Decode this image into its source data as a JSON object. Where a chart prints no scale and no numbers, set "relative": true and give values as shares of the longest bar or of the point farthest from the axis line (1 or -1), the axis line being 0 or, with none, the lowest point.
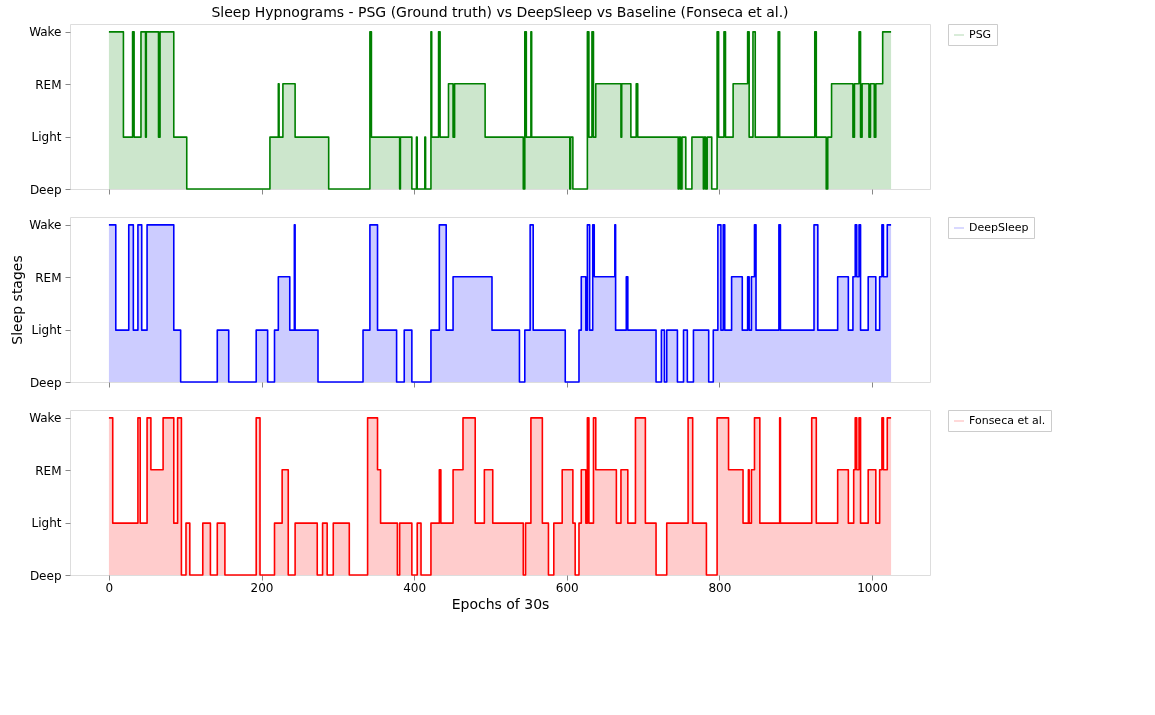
{
  "chart_data": [
    {
      "type": "step",
      "relative": true,
      "title": "Sleep Hypnograms - PSG (Ground truth) vs DeepSleep vs Baseline (Fonseca et al.)",
      "xlim": [
        -51,
        1076
      ],
      "xticks": [
        0,
        200,
        400,
        600,
        800,
        1000
      ],
      "y_categories": [
        "Wake",
        "REM",
        "Light",
        "Deep"
      ],
      "tick_labels": "y",
      "legend": "right",
      "grid": false,
      "series": [
        {
          "name": "PSG",
          "color": "#008000",
          "x": [
            0,
            19,
            31,
            33,
            42,
            48,
            49,
            65,
            67,
            85,
            102,
            211,
            222,
            223,
            228,
            244,
            288,
            342,
            344,
            381,
            382,
            397,
            403,
            404,
            414,
            415,
            422,
            423,
            432,
            434,
            445,
            451,
            453,
            493,
            543,
            545,
            547,
            553,
            554,
            604,
            605,
            608,
            627,
            629,
            633,
            635,
            638,
            671,
            672,
            684,
            691,
            693,
            746,
            747,
            749,
            751,
            756,
            764,
            779,
            780,
            782,
            784,
            790,
            797,
            799,
            806,
            808,
            818,
            837,
            839,
            844,
            847,
            877,
            879,
            925,
            927,
            940,
            942,
            947,
            975,
            977,
            983,
            985,
            987,
            996,
            998,
            1003,
            1005,
            1014,
            1025
          ],
          "values": [
            1,
            0.33,
            1,
            0.33,
            1,
            0.33,
            1,
            0.33,
            1,
            0.33,
            0,
            0.33,
            0.67,
            0.33,
            0.67,
            0.33,
            0,
            1,
            0.33,
            0,
            0.33,
            0,
            0.33,
            0,
            0.33,
            0,
            1,
            0.33,
            1,
            0.33,
            0.67,
            0.33,
            0.67,
            0.33,
            0,
            1,
            0.33,
            1,
            0.33,
            0,
            0.33,
            0,
            1,
            0.33,
            1,
            0.33,
            0.67,
            0.33,
            0.67,
            0.33,
            0.67,
            0.33,
            0,
            0.33,
            0,
            0.33,
            0,
            0.33,
            0,
            0.33,
            0,
            0.33,
            0,
            1,
            0.33,
            1,
            0.33,
            0.67,
            1,
            0.33,
            1,
            0.33,
            1,
            0.33,
            1,
            0.33,
            0,
            0.33,
            0.67,
            0.33,
            0.67,
            1,
            0.33,
            0.67,
            0.33,
            0.67,
            0.33,
            0.67,
            1,
            1
          ]
        }
      ]
    },
    {
      "type": "step",
      "relative": true,
      "ylabel": "Sleep stages",
      "xlim": [
        -51,
        1076
      ],
      "xticks": [
        0,
        200,
        400,
        600,
        800,
        1000
      ],
      "y_categories": [
        "Wake",
        "REM",
        "Light",
        "Deep"
      ],
      "tick_labels": "y",
      "legend": "right",
      "grid": false,
      "series": [
        {
          "name": "DeepSleep",
          "color": "#0000ff",
          "x": [
            0,
            9,
            26,
            32,
            38,
            43,
            50,
            85,
            94,
            142,
            157,
            193,
            208,
            217,
            222,
            237,
            243,
            244,
            274,
            333,
            342,
            352,
            377,
            387,
            397,
            422,
            433,
            442,
            451,
            502,
            538,
            545,
            552,
            556,
            598,
            616,
            619,
            625,
            627,
            630,
            634,
            636,
            663,
            664,
            678,
            680,
            717,
            724,
            728,
            731,
            745,
            753,
            758,
            766,
            786,
            792,
            798,
            802,
            805,
            807,
            816,
            830,
            837,
            839,
            842,
            846,
            848,
            878,
            880,
            924,
            929,
            955,
            969,
            975,
            978,
            980,
            983,
            985,
            995,
            1005,
            1010,
            1013,
            1015,
            1020,
            1025
          ],
          "values": [
            1,
            0.33,
            1,
            0.33,
            1,
            0.33,
            1,
            0.33,
            0,
            0.33,
            0,
            0.33,
            0,
            0.33,
            0.67,
            0.33,
            1,
            0.33,
            0,
            0.33,
            1,
            0.33,
            0,
            0.33,
            0,
            0.33,
            1,
            0.33,
            0.67,
            0.33,
            0,
            0.33,
            1,
            0.33,
            0,
            0.33,
            0.67,
            0.33,
            1,
            0.33,
            1,
            0.67,
            1,
            0.33,
            0.67,
            0.33,
            0,
            0.33,
            0,
            0.33,
            0,
            0.33,
            0,
            0.33,
            0,
            0.33,
            1,
            0.33,
            1,
            0.33,
            0.67,
            0.33,
            0.67,
            0.33,
            0.67,
            1,
            0.33,
            1,
            0.33,
            1,
            0.33,
            0.67,
            0.33,
            0.67,
            1,
            0.67,
            1,
            0.33,
            0.67,
            0.33,
            0.67,
            1,
            0.67,
            1,
            1
          ]
        }
      ]
    },
    {
      "type": "step",
      "relative": true,
      "xlabel": "Epochs of 30s",
      "xlim": [
        -51,
        1076
      ],
      "xticks": [
        0,
        200,
        400,
        600,
        800,
        1000
      ],
      "y_categories": [
        "Wake",
        "REM",
        "Light",
        "Deep"
      ],
      "legend": "right",
      "grid": false,
      "series": [
        {
          "name": "Fonseca et al.",
          "color": "#ff0000",
          "x": [
            0,
            5,
            38,
            41,
            50,
            55,
            71,
            85,
            90,
            95,
            101,
            106,
            123,
            133,
            142,
            152,
            193,
            198,
            217,
            227,
            235,
            244,
            273,
            280,
            286,
            294,
            315,
            339,
            352,
            356,
            378,
            381,
            397,
            404,
            409,
            422,
            433,
            435,
            451,
            464,
            480,
            492,
            503,
            543,
            546,
            553,
            568,
            576,
            583,
            594,
            608,
            611,
            616,
            619,
            625,
            627,
            629,
            635,
            638,
            665,
            671,
            680,
            690,
            703,
            717,
            731,
            759,
            765,
            783,
            797,
            812,
            831,
            838,
            839,
            842,
            846,
            853,
            879,
            880,
            921,
            927,
            955,
            969,
            976,
            978,
            980,
            983,
            985,
            995,
            1005,
            1010,
            1013,
            1015,
            1020,
            1025
          ],
          "values": [
            1,
            0.33,
            1,
            0.33,
            1,
            0.67,
            1,
            0.33,
            1,
            0,
            0.33,
            0,
            0.33,
            0,
            0.33,
            0,
            1,
            0,
            0.33,
            0.67,
            0,
            0.33,
            0,
            0.33,
            0,
            0.33,
            0,
            1,
            0.67,
            0.33,
            0,
            0.33,
            0,
            0.33,
            0,
            0.33,
            0.67,
            0.33,
            0.67,
            1,
            0.33,
            0.67,
            0.33,
            0,
            0.33,
            1,
            0.33,
            0,
            0.33,
            0.67,
            0.33,
            0,
            0.33,
            0.67,
            0.33,
            1,
            0.33,
            1,
            0.67,
            0.33,
            0.67,
            0.33,
            1,
            0.33,
            0,
            0.33,
            1,
            0.33,
            0,
            1,
            0.67,
            0.33,
            0.67,
            0.33,
            0.67,
            1,
            0.33,
            1,
            0.33,
            1,
            0.33,
            0.67,
            0.33,
            0.67,
            1,
            0.67,
            1,
            0.33,
            0.67,
            0.33,
            0.67,
            1,
            0.67,
            1,
            1
          ]
        }
      ]
    }
  ]
}
